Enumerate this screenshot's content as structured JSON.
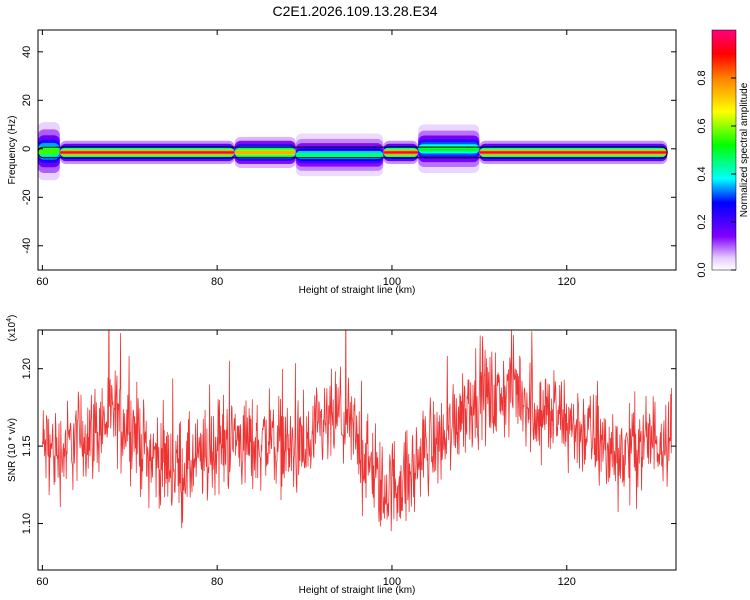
{
  "title": "C2E1.2026.109.13.28.E34",
  "chart_data": [
    {
      "type": "heatmap",
      "name": "spectrogram",
      "xlabel": "Height of straight line (km)",
      "ylabel": "Frequency (Hz)",
      "xlim": [
        59.5,
        132.5
      ],
      "ylim": [
        -50,
        49
      ],
      "x_ticks": [
        60,
        80,
        100,
        120
      ],
      "y_ticks": [
        40,
        20,
        0,
        -20,
        -40
      ],
      "grid": false,
      "band_center_hz": -1.5,
      "band_start_km": 59.5,
      "band_end_km": 131.5,
      "features": [
        {
          "x_start": 59.5,
          "x_end": 62.0,
          "center_hz": -1.0,
          "halfwidth_hz": 3.0,
          "amplitude": 0.55
        },
        {
          "x_start": 62.0,
          "x_end": 82.0,
          "center_hz": -1.5,
          "halfwidth_hz": 1.2,
          "amplitude": 0.95
        },
        {
          "x_start": 82.0,
          "x_end": 89.0,
          "center_hz": -1.5,
          "halfwidth_hz": 1.6,
          "amplitude": 0.75
        },
        {
          "x_start": 89.0,
          "x_end": 99.0,
          "center_hz": -2.5,
          "halfwidth_hz": 2.2,
          "amplitude": 0.45
        },
        {
          "x_start": 99.0,
          "x_end": 103.0,
          "center_hz": -1.5,
          "halfwidth_hz": 1.2,
          "amplitude": 0.95
        },
        {
          "x_start": 103.0,
          "x_end": 110.0,
          "center_hz": 0.0,
          "halfwidth_hz": 2.5,
          "amplitude": 0.5
        },
        {
          "x_start": 110.0,
          "x_end": 131.5,
          "center_hz": -1.5,
          "halfwidth_hz": 1.2,
          "amplitude": 0.95
        }
      ],
      "colorbar": {
        "label": "Normalized spectral amplitude",
        "range": [
          0.0,
          1.0
        ],
        "ticks": [
          0.0,
          0.2,
          0.4,
          0.6,
          0.8
        ],
        "tick_labels": [
          "0.0",
          "0.2",
          "0.4",
          "0.6",
          "0.8"
        ]
      }
    },
    {
      "type": "line",
      "name": "snr",
      "xlabel": "Height of straight line (km)",
      "ylabel": "SNR (10 * v/v)",
      "yscale_label_base": "(x10",
      "yscale_label_exp": "4",
      "yscale_label_close": ")",
      "xlim": [
        59.5,
        132.5
      ],
      "ylim": [
        1.07,
        1.225
      ],
      "x_ticks": [
        60,
        80,
        100,
        120
      ],
      "y_ticks": [
        1.1,
        1.15,
        1.2
      ],
      "y_tick_labels": [
        "1.10",
        "1.15",
        "1.20"
      ],
      "grid": false,
      "color": "#ee3333",
      "series": [
        {
          "name": "SNR",
          "x": [
            60,
            62,
            64,
            66,
            68,
            70,
            72,
            74,
            76,
            78,
            80,
            82,
            84,
            86,
            88,
            90,
            92,
            94,
            96,
            98,
            99,
            100,
            102,
            104,
            106,
            108,
            110,
            112,
            114,
            116,
            118,
            120,
            122,
            124,
            126,
            128,
            130,
            132
          ],
          "values": [
            1.15,
            1.145,
            1.155,
            1.16,
            1.17,
            1.165,
            1.145,
            1.14,
            1.135,
            1.14,
            1.15,
            1.155,
            1.15,
            1.155,
            1.15,
            1.145,
            1.16,
            1.17,
            1.155,
            1.13,
            1.12,
            1.125,
            1.13,
            1.15,
            1.155,
            1.175,
            1.185,
            1.18,
            1.19,
            1.175,
            1.17,
            1.165,
            1.16,
            1.15,
            1.145,
            1.15,
            1.155,
            1.16
          ],
          "noise_amplitude": 0.015
        }
      ]
    }
  ]
}
